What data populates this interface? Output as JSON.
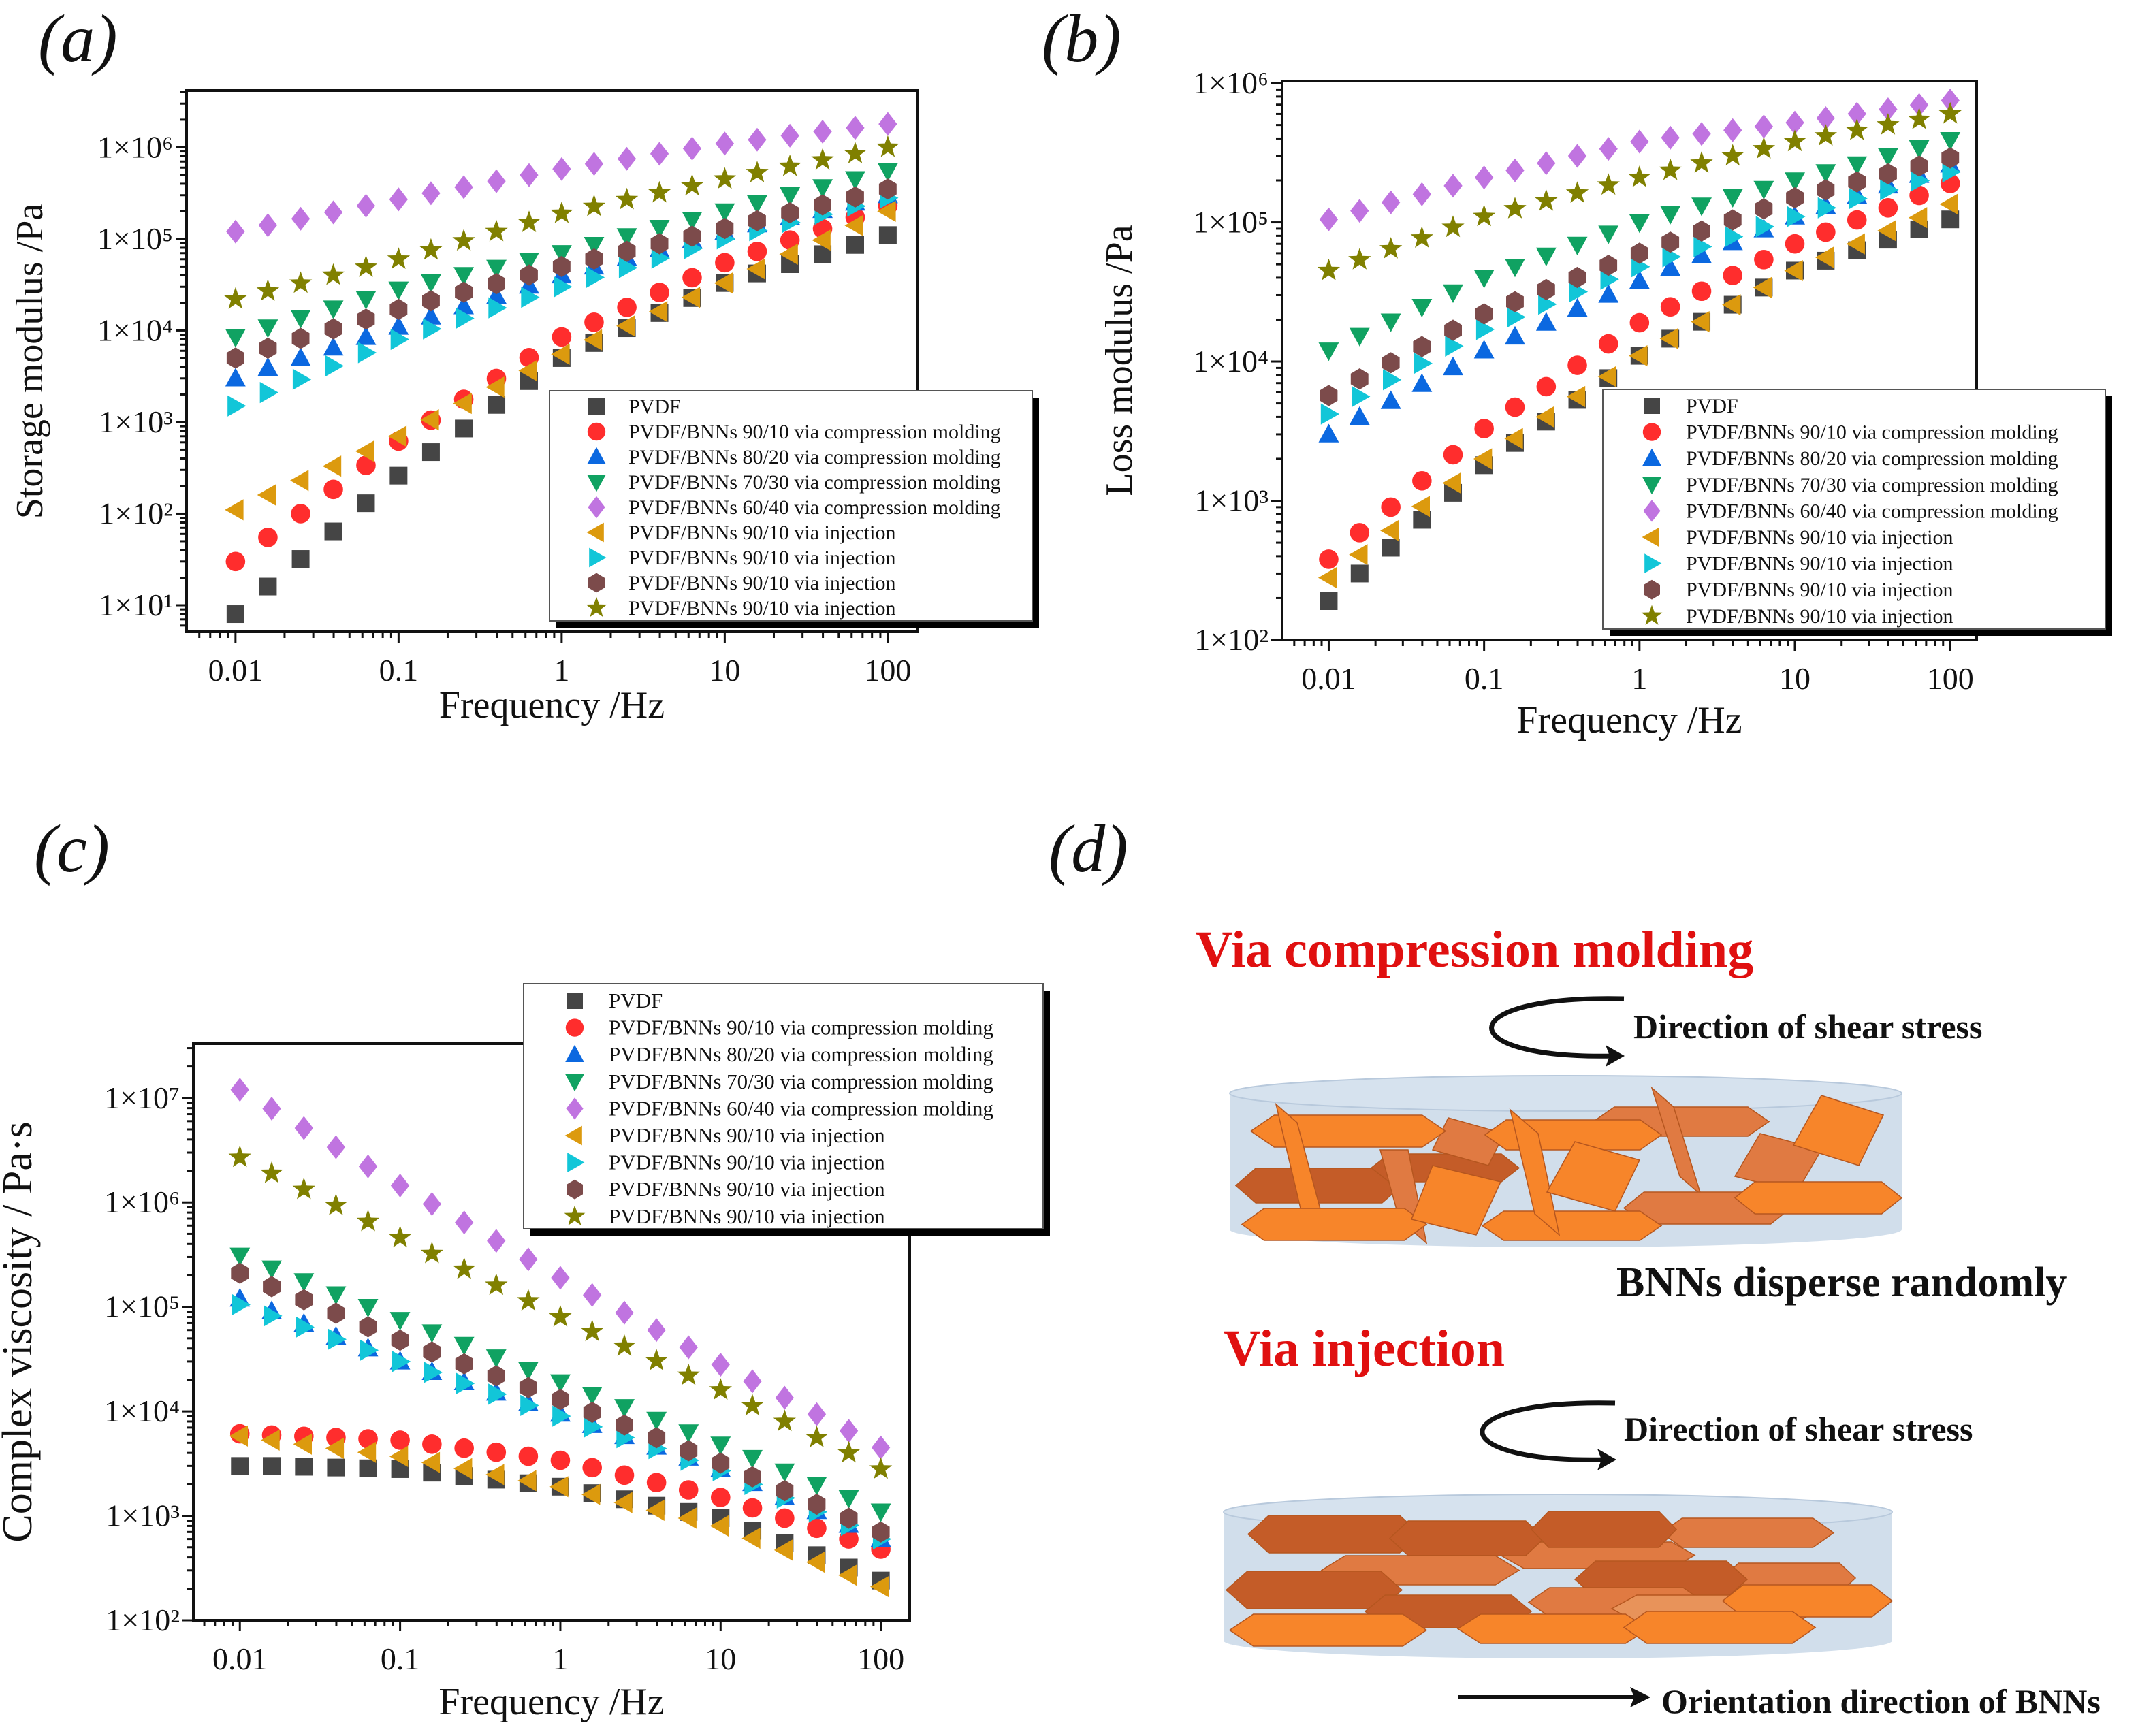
{
  "chart_data": [
    {
      "type": "scatter",
      "title": "(a)",
      "xlabel": "Frequency /Hz",
      "ylabel": "Storage modulus /Pa",
      "xscale": "log",
      "yscale": "log",
      "xlim": [
        0.005,
        150
      ],
      "ylim": [
        5,
        4200000
      ],
      "xticks": [
        0.01,
        0.1,
        1,
        10,
        100
      ],
      "xtick_labels": [
        "0.01",
        "0.1",
        "1",
        "10",
        "100"
      ],
      "yticks": [
        10,
        100,
        1000,
        10000,
        100000,
        1000000
      ],
      "ytick_labels": [
        "1×10¹",
        "1×10²",
        "1×10³",
        "1×10⁴",
        "1×10⁵",
        "1×10⁶"
      ],
      "legend": "bottom-right",
      "x": [
        0.01,
        0.0158,
        0.0251,
        0.0398,
        0.0631,
        0.1,
        0.158,
        0.251,
        0.398,
        0.631,
        1,
        1.58,
        2.51,
        3.98,
        6.31,
        10,
        15.8,
        25.1,
        39.8,
        63.1,
        100
      ],
      "series": [
        {
          "name": "PVDF",
          "marker": "square",
          "color": "#454545",
          "values": [
            8,
            16,
            32,
            64,
            130,
            260,
            470,
            850,
            1540,
            2800,
            5000,
            7300,
            10600,
            15500,
            22600,
            33000,
            42000,
            53000,
            68000,
            86000,
            110000
          ]
        },
        {
          "name": "PVDF/BNNs 90/10 via compression molding",
          "marker": "circle",
          "color": "#ff2d2d",
          "values": [
            30,
            55,
            100,
            184,
            337,
            620,
            1050,
            1770,
            2990,
            5050,
            8500,
            12300,
            17900,
            26000,
            37700,
            55000,
            73000,
            97000,
            129000,
            172000,
            230000
          ]
        },
        {
          "name": "PVDF/BNNs 80/20 via compression molding",
          "marker": "triangle-up",
          "color": "#0b68e0",
          "values": [
            3000,
            3900,
            5000,
            6500,
            8500,
            11000,
            14200,
            18400,
            23900,
            30900,
            40000,
            50000,
            62000,
            77000,
            97000,
            120000,
            144000,
            173000,
            207000,
            249000,
            300000
          ]
        },
        {
          "name": "PVDF/BNNs 70/30 via compression molding",
          "marker": "triangle-down",
          "color": "#10a262",
          "values": [
            8500,
            10800,
            13700,
            17400,
            22100,
            28000,
            33600,
            40300,
            48400,
            58000,
            70000,
            86000,
            107000,
            132000,
            162000,
            200000,
            245000,
            300000,
            367000,
            449000,
            550000
          ]
        },
        {
          "name": "PVDF/BNNs 60/40 via compression molding",
          "marker": "diamond",
          "color": "#c074e0",
          "values": [
            120000,
            141000,
            166000,
            195000,
            230000,
            270000,
            315000,
            367000,
            427000,
            498000,
            580000,
            660000,
            750000,
            850000,
            970000,
            1100000,
            1210000,
            1340000,
            1480000,
            1630000,
            1800000
          ]
        },
        {
          "name": "PVDF/BNNs 90/10 via injection",
          "marker": "triangle-left",
          "color": "#dc9a0e",
          "values": [
            110,
            160,
            230,
            330,
            480,
            700,
            1060,
            1600,
            2410,
            3640,
            5500,
            7900,
            11200,
            16100,
            23000,
            33000,
            47000,
            68000,
            97000,
            140000,
            200000
          ]
        },
        {
          "name": "PVDF/BNNs 90/10 via injection",
          "marker": "triangle-right",
          "color": "#12c6d8",
          "values": [
            1500,
            2100,
            2930,
            4100,
            5730,
            8000,
            10400,
            13600,
            17700,
            23000,
            30000,
            38000,
            48500,
            61700,
            78600,
            100000,
            123000,
            151000,
            186000,
            228000,
            280000
          ]
        },
        {
          "name": "PVDF/BNNs 90/10 via injection",
          "marker": "hexagon",
          "color": "#7c4b4b",
          "values": [
            5000,
            6400,
            8200,
            10400,
            13300,
            17000,
            21100,
            26200,
            32500,
            40300,
            50000,
            60500,
            73200,
            88600,
            107000,
            130000,
            158000,
            193000,
            235000,
            287000,
            350000
          ]
        },
        {
          "name": "PVDF/BNNs 90/10 via injection",
          "marker": "star",
          "color": "#808000",
          "values": [
            22000,
            26900,
            32800,
            40100,
            49000,
            60000,
            75500,
            95100,
            120000,
            151000,
            190000,
            226000,
            268000,
            318000,
            379000,
            450000,
            528000,
            619000,
            726000,
            852000,
            1000000
          ]
        }
      ]
    },
    {
      "type": "scatter",
      "title": "(b)",
      "xlabel": "Frequency /Hz",
      "ylabel": "Loss modulus /Pa",
      "xscale": "log",
      "yscale": "log",
      "xlim": [
        0.005,
        150
      ],
      "ylim": [
        100,
        1050000
      ],
      "xticks": [
        0.01,
        0.1,
        1,
        10,
        100
      ],
      "xtick_labels": [
        "0.01",
        "0.1",
        "1",
        "10",
        "100"
      ],
      "yticks": [
        100,
        1000,
        10000,
        100000,
        1000000
      ],
      "ytick_labels": [
        "1×10²",
        "1×10³",
        "1×10⁴",
        "1×10⁵",
        "1×10⁶"
      ],
      "legend": "bottom-right",
      "x": [
        0.01,
        0.0158,
        0.0251,
        0.0398,
        0.0631,
        0.1,
        0.158,
        0.251,
        0.398,
        0.631,
        1,
        1.58,
        2.51,
        3.98,
        6.31,
        10,
        15.8,
        25.1,
        39.8,
        63.1,
        100
      ],
      "series": [
        {
          "name": "PVDF",
          "marker": "square",
          "color": "#454545",
          "values": [
            190,
            300,
            460,
            730,
            1140,
            1800,
            2600,
            3700,
            5300,
            7600,
            11000,
            14600,
            19300,
            25600,
            34000,
            45000,
            53000,
            63000,
            75000,
            89000,
            105000
          ]
        },
        {
          "name": "PVDF/BNNs 90/10 via compression molding",
          "marker": "circle",
          "color": "#ff2d2d",
          "values": [
            380,
            590,
            900,
            1390,
            2140,
            3300,
            4700,
            6600,
            9400,
            13400,
            19000,
            24700,
            32000,
            41500,
            54000,
            70000,
            85000,
            104000,
            127000,
            156000,
            190000
          ]
        },
        {
          "name": "PVDF/BNNs 80/20 via compression molding",
          "marker": "triangle-up",
          "color": "#0b68e0",
          "values": [
            3000,
            4000,
            5200,
            6900,
            9100,
            12000,
            15100,
            19000,
            24000,
            30200,
            38000,
            47000,
            58000,
            72000,
            89000,
            110000,
            131000,
            155000,
            184000,
            219000,
            260000
          ]
        },
        {
          "name": "PVDF/BNNs 70/30 via compression molding",
          "marker": "triangle-down",
          "color": "#10a262",
          "values": [
            12000,
            15300,
            19400,
            24700,
            31400,
            40000,
            48000,
            57600,
            69100,
            83000,
            100000,
            115000,
            132000,
            152000,
            174000,
            200000,
            229000,
            261000,
            299000,
            341000,
            390000
          ]
        },
        {
          "name": "PVDF/BNNs 60/40 via compression molding",
          "marker": "diamond",
          "color": "#c074e0",
          "values": [
            105000,
            121000,
            139000,
            159000,
            183000,
            210000,
            236000,
            266000,
            300000,
            337000,
            380000,
            405000,
            431000,
            459000,
            488000,
            520000,
            560000,
            602000,
            648000,
            697000,
            750000
          ]
        },
        {
          "name": "PVDF/BNNs 90/10 via injection",
          "marker": "triangle-left",
          "color": "#dc9a0e",
          "values": [
            280,
            410,
            610,
            910,
            1340,
            2000,
            2800,
            4000,
            5600,
            7800,
            11000,
            14600,
            19300,
            25600,
            34000,
            45000,
            56000,
            70000,
            87000,
            108000,
            135000
          ]
        },
        {
          "name": "PVDF/BNNs 90/10 via injection",
          "marker": "triangle-right",
          "color": "#12c6d8",
          "values": [
            4200,
            5600,
            7400,
            9700,
            12900,
            17000,
            20900,
            25800,
            31700,
            39000,
            48000,
            56600,
            66800,
            78900,
            93100,
            110000,
            127000,
            148000,
            171000,
            199000,
            230000
          ]
        },
        {
          "name": "PVDF/BNNs 90/10 via injection",
          "marker": "hexagon",
          "color": "#7c4b4b",
          "values": [
            5700,
            7500,
            9800,
            12800,
            16800,
            22000,
            26900,
            32900,
            40200,
            49100,
            60000,
            72000,
            86500,
            104000,
            125000,
            150000,
            171000,
            195000,
            223000,
            254000,
            290000
          ]
        },
        {
          "name": "PVDF/BNNs 90/10 via injection",
          "marker": "star",
          "color": "#808000",
          "values": [
            45000,
            53800,
            64400,
            77000,
            92000,
            110000,
            125000,
            142000,
            162000,
            185000,
            210000,
            236000,
            266000,
            300000,
            337000,
            380000,
            417000,
            457000,
            500000,
            548000,
            600000
          ]
        }
      ]
    },
    {
      "type": "scatter",
      "title": "(c)",
      "xlabel": "Frequency /Hz",
      "ylabel": "Complex viscosity / Pa·s",
      "xscale": "log",
      "yscale": "log",
      "xlim": [
        0.005,
        150
      ],
      "ylim": [
        100,
        33000000
      ],
      "xticks": [
        0.01,
        0.1,
        1,
        10,
        100
      ],
      "xtick_labels": [
        "0.01",
        "0.1",
        "1",
        "10",
        "100"
      ],
      "yticks": [
        100,
        1000,
        10000,
        100000,
        1000000,
        10000000
      ],
      "ytick_labels": [
        "1×10²",
        "1×10³",
        "1×10⁴",
        "1×10⁵",
        "1×10⁶",
        "1×10⁷"
      ],
      "legend": "top-right",
      "x": [
        0.01,
        0.0158,
        0.0251,
        0.0398,
        0.0631,
        0.1,
        0.158,
        0.251,
        0.398,
        0.631,
        1,
        1.58,
        2.51,
        3.98,
        6.31,
        10,
        15.8,
        25.1,
        39.8,
        63.1,
        100
      ],
      "series": [
        {
          "name": "PVDF",
          "marker": "square",
          "color": "#454545",
          "values": [
            3000,
            3000,
            2950,
            2900,
            2850,
            2800,
            2590,
            2400,
            2220,
            2050,
            1900,
            1650,
            1440,
            1250,
            1090,
            950,
            720,
            550,
            420,
            320,
            240
          ]
        },
        {
          "name": "PVDF/BNNs 90/10 via compression molding",
          "marker": "circle",
          "color": "#ff2d2d",
          "values": [
            6100,
            5930,
            5770,
            5610,
            5450,
            5300,
            4850,
            4440,
            4060,
            3720,
            3400,
            2890,
            2450,
            2080,
            1770,
            1500,
            1190,
            950,
            760,
            600,
            480
          ]
        },
        {
          "name": "PVDF/BNNs 80/20 via compression molding",
          "marker": "triangle-up",
          "color": "#0b68e0",
          "values": [
            120000,
            91000,
            69000,
            52000,
            40000,
            30000,
            23800,
            19000,
            15100,
            12000,
            9500,
            7400,
            5800,
            4600,
            3600,
            2800,
            2060,
            1510,
            1110,
            820,
            600
          ]
        },
        {
          "name": "PVDF/BNNs 70/30 via compression molding",
          "marker": "triangle-down",
          "color": "#10a262",
          "values": [
            310000,
            233000,
            176000,
            132000,
            100000,
            75000,
            57000,
            43300,
            32900,
            25000,
            19000,
            14400,
            11000,
            8300,
            6300,
            4800,
            3580,
            2660,
            1980,
            1480,
            1100
          ]
        },
        {
          "name": "PVDF/BNNs 60/40 via compression molding",
          "marker": "diamond",
          "color": "#c074e0",
          "values": [
            12000000,
            7900000,
            5150000,
            3380000,
            2210000,
            1450000,
            966000,
            643000,
            428000,
            285000,
            190000,
            130000,
            88000,
            60000,
            41000,
            28000,
            19400,
            13500,
            9400,
            6500,
            4500
          ]
        },
        {
          "name": "PVDF/BNNs 90/10 via injection",
          "marker": "triangle-left",
          "color": "#dc9a0e",
          "values": [
            5800,
            5300,
            4850,
            4430,
            4050,
            3700,
            3240,
            2830,
            2480,
            2170,
            1900,
            1600,
            1340,
            1130,
            950,
            800,
            610,
            470,
            360,
            270,
            210
          ]
        },
        {
          "name": "PVDF/BNNs 90/10 via injection",
          "marker": "triangle-right",
          "color": "#12c6d8",
          "values": [
            105000,
            82000,
            64000,
            49000,
            38500,
            30000,
            23600,
            18500,
            14600,
            11400,
            9000,
            7100,
            5600,
            4400,
            3400,
            2700,
            2000,
            1480,
            1090,
            810,
            600
          ]
        },
        {
          "name": "PVDF/BNNs 90/10 via injection",
          "marker": "hexagon",
          "color": "#7c4b4b",
          "values": [
            210000,
            156000,
            117000,
            87000,
            64500,
            48000,
            37000,
            28500,
            21900,
            16900,
            13000,
            9800,
            7400,
            5600,
            4200,
            3200,
            2360,
            1740,
            1290,
            950,
            700
          ]
        },
        {
          "name": "PVDF/BNNs 90/10 via injection",
          "marker": "star",
          "color": "#808000",
          "values": [
            2700000,
            1900000,
            1330000,
            935000,
            656000,
            460000,
            324000,
            229000,
            161000,
            114000,
            80000,
            58000,
            42000,
            30500,
            22100,
            16000,
            11300,
            8000,
            5600,
            4000,
            2800
          ]
        }
      ]
    }
  ],
  "diagram": {
    "label": "(d)",
    "compression_title": "Via compression molding",
    "shear_label_1": "Direction of shear stress",
    "random_caption": "BNNs disperse randomly",
    "injection_title": "Via injection",
    "shear_label_2": "Direction of shear stress",
    "orientation_caption": "Orientation direction of BNNs",
    "colors": {
      "title": "#e01010",
      "disc": "#c9d8e8",
      "flake_light": "#f7852a",
      "flake_mid": "#e07a42",
      "flake_dark": "#c45c28"
    }
  }
}
